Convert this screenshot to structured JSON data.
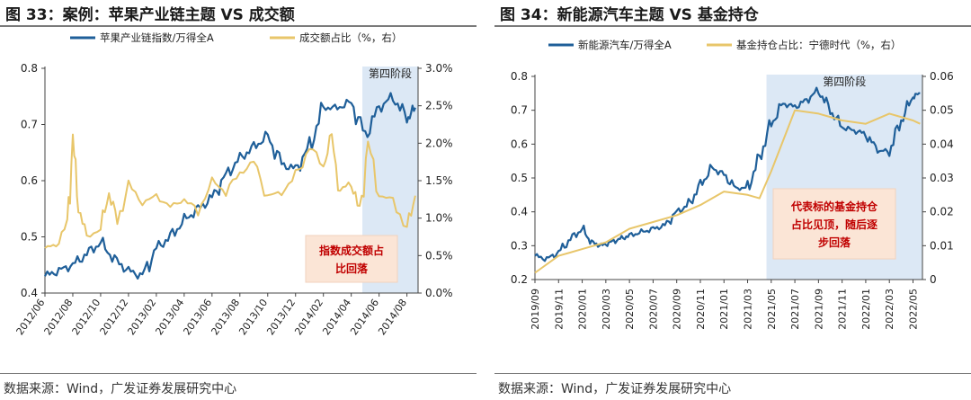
{
  "charts": [
    {
      "title": "图 33：案例：苹果产业链主题 VS 成交额",
      "source": "数据来源：Wind，广发证券发展研究中心",
      "chart_data": {
        "type": "line",
        "x_ticks": [
          "2012/06",
          "2012/08",
          "2012/10",
          "2012/12",
          "2013/02",
          "2013/04",
          "2013/06",
          "2013/08",
          "2013/10",
          "2013/12",
          "2014/02",
          "2014/04",
          "2014/06",
          "2014/08"
        ],
        "y_left": {
          "ylim": [
            0.4,
            0.8
          ],
          "ticks": [
            "0.4",
            "0.5",
            "0.6",
            "0.7",
            "0.8"
          ]
        },
        "y_right": {
          "ylim": [
            0,
            3
          ],
          "ticks": [
            "0.0%",
            "0.5%",
            "1.0%",
            "1.5%",
            "2.0%",
            "2.5%",
            "3.0%"
          ]
        },
        "series": [
          {
            "name": "苹果产业链指数/万得全A",
            "axis": "left",
            "color": "#1f5f99",
            "x": [
              0,
              0.5,
              1,
              1.5,
              2,
              2.5,
              3,
              3.5,
              4,
              4.5,
              5,
              5.5,
              6,
              6.5,
              7,
              7.5,
              8,
              8.5,
              9,
              9.5,
              10,
              10.5,
              11,
              11.5,
              12,
              12.5,
              13,
              13.3
            ],
            "y": [
              0.43,
              0.44,
              0.45,
              0.47,
              0.49,
              0.46,
              0.44,
              0.43,
              0.48,
              0.5,
              0.53,
              0.55,
              0.57,
              0.61,
              0.64,
              0.66,
              0.68,
              0.63,
              0.62,
              0.66,
              0.73,
              0.73,
              0.74,
              0.68,
              0.73,
              0.75,
              0.71,
              0.73
            ]
          },
          {
            "name": "成交额占比（%，右）",
            "axis": "right",
            "color": "#e8c66a",
            "x": [
              0,
              0.4,
              0.8,
              1,
              1.2,
              1.5,
              2,
              2.3,
              2.6,
              3,
              3.5,
              4,
              4.5,
              5,
              5.5,
              6,
              6.5,
              7,
              7.5,
              8,
              8.5,
              9,
              9.5,
              10,
              10.3,
              10.6,
              11,
              11.3,
              11.6,
              12,
              12.5,
              13,
              13.3
            ],
            "y": [
              0.6,
              0.65,
              0.9,
              2.05,
              1.15,
              0.75,
              0.85,
              1.35,
              0.95,
              1.45,
              1.2,
              1.3,
              1.15,
              1.25,
              1.1,
              1.5,
              1.35,
              1.6,
              1.75,
              1.3,
              1.35,
              1.55,
              1.95,
              1.7,
              2.1,
              1.35,
              1.5,
              1.05,
              2.0,
              1.3,
              1.25,
              0.85,
              1.3
            ]
          }
        ],
        "highlight": {
          "label": "第四阶段",
          "x_start": 11.4,
          "x_end": 13.4,
          "color": "#dce8f5"
        },
        "annotation": {
          "lines": [
            "指数成交额占",
            "比回落"
          ]
        }
      }
    },
    {
      "title": "图 34：新能源汽车主题 VS 基金持仓",
      "source": "数据来源：Wind，广发证券发展研究中心",
      "chart_data": {
        "type": "line",
        "x_ticks": [
          "2019/09",
          "2019/11",
          "2020/01",
          "2020/03",
          "2020/05",
          "2020/07",
          "2020/09",
          "2020/11",
          "2021/01",
          "2021/03",
          "2021/05",
          "2021/07",
          "2021/09",
          "2021/11",
          "2022/01",
          "2022/03",
          "2022/05"
        ],
        "y_left": {
          "ylim": [
            0.2,
            0.8
          ],
          "ticks": [
            "0.2",
            "0.3",
            "0.4",
            "0.5",
            "0.6",
            "0.7",
            "0.8"
          ]
        },
        "y_right": {
          "ylim": [
            0,
            0.06
          ],
          "ticks": [
            "0",
            "0.01",
            "0.02",
            "0.03",
            "0.04",
            "0.05",
            "0.06"
          ]
        },
        "series": [
          {
            "name": "新能源汽车/万得全A",
            "axis": "left",
            "color": "#1f5f99",
            "x": [
              0,
              0.5,
              1,
              1.5,
              2,
              2.4,
              2.8,
              3.2,
              3.6,
              4,
              4.5,
              5,
              5.5,
              6,
              6.5,
              7,
              7.5,
              8,
              8.5,
              9,
              9.5,
              10,
              10.5,
              11,
              11.5,
              12,
              12.5,
              13,
              13.5,
              14,
              14.5,
              15,
              15.5,
              16,
              16.3
            ],
            "y": [
              0.27,
              0.26,
              0.28,
              0.32,
              0.35,
              0.31,
              0.3,
              0.31,
              0.32,
              0.33,
              0.34,
              0.35,
              0.36,
              0.4,
              0.42,
              0.48,
              0.53,
              0.51,
              0.47,
              0.47,
              0.56,
              0.66,
              0.72,
              0.71,
              0.73,
              0.76,
              0.7,
              0.65,
              0.64,
              0.63,
              0.58,
              0.58,
              0.67,
              0.74,
              0.75
            ]
          },
          {
            "name": "基金持仓占比：宁德时代（%，右）",
            "axis": "right",
            "color": "#e8c66a",
            "x": [
              0,
              1,
              2,
              3,
              4,
              5,
              6,
              7,
              8,
              9,
              9.5,
              10,
              11,
              12,
              13,
              14,
              15,
              16,
              16.3
            ],
            "y": [
              0.002,
              0.007,
              0.009,
              0.011,
              0.015,
              0.017,
              0.019,
              0.022,
              0.026,
              0.025,
              0.024,
              0.032,
              0.05,
              0.049,
              0.047,
              0.046,
              0.049,
              0.047,
              0.046
            ]
          }
        ],
        "highlight": {
          "label": "第四阶段",
          "x_start": 9.8,
          "x_end": 16.4,
          "color": "#dce8f5"
        },
        "annotation": {
          "lines": [
            "代表标的基金持仓",
            "占比见顶，随后逐",
            "步回落"
          ]
        }
      }
    }
  ]
}
